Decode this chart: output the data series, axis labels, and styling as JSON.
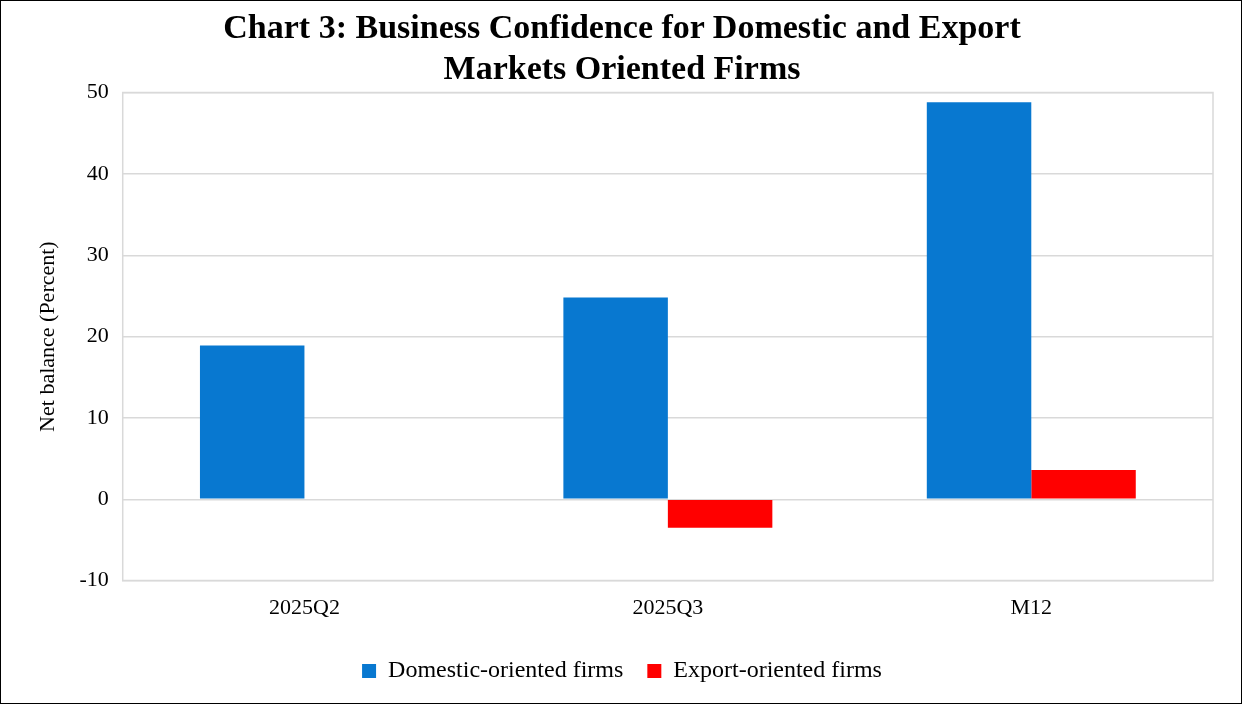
{
  "chart_data": {
    "type": "bar",
    "title": "Chart 3: Business Confidence for Domestic and Export Markets Oriented Firms",
    "ylabel": "Net balance (Percent)",
    "categories": [
      "2025Q2",
      "2025Q3",
      "M12"
    ],
    "series": [
      {
        "name": "Domestic-oriented firms",
        "color": "#0878d0",
        "values": [
          18.9,
          24.8,
          48.8
        ]
      },
      {
        "name": "Export-oriented firms",
        "color": "#ff0000",
        "values": [
          0,
          -3.5,
          3.6
        ]
      }
    ],
    "ylim": [
      -10,
      50
    ],
    "yticks": [
      -10,
      0,
      10,
      20,
      30,
      40,
      50
    ],
    "grid": "y",
    "legend": "bottom"
  }
}
